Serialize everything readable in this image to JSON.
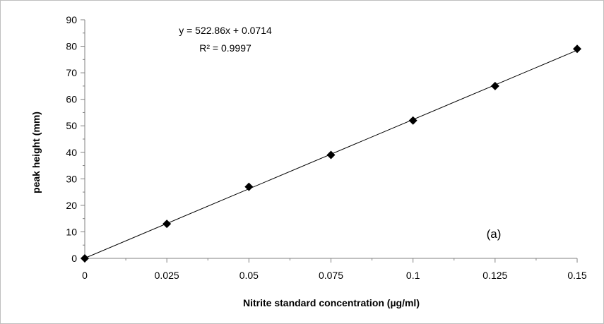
{
  "chart_data": {
    "type": "scatter",
    "title": "",
    "xlabel": "Nitrite standard concentration (µg/ml)",
    "ylabel": "peak height (mm)",
    "xlim": [
      0,
      0.15
    ],
    "ylim": [
      0,
      90
    ],
    "x_ticks": [
      "0",
      "0.025",
      "0.05",
      "0.075",
      "0.1",
      "0.125",
      "0.15"
    ],
    "y_ticks": [
      "0",
      "10",
      "20",
      "30",
      "40",
      "50",
      "60",
      "70",
      "80",
      "90"
    ],
    "grid": false,
    "legend": "none",
    "series": [
      {
        "x": [
          0,
          0.025,
          0.05,
          0.075,
          0.1,
          0.125,
          0.15
        ],
        "y": [
          0,
          13,
          27,
          39,
          52,
          65,
          79
        ],
        "marker": "diamond",
        "color": "#000000"
      }
    ],
    "trendline": {
      "slope": 522.86,
      "intercept": 0.0714,
      "color": "#000000"
    },
    "annotations": {
      "equation": "y = 522.86x + 0.0714",
      "r_squared": "R² = 0.9997",
      "panel_label": "(a)"
    }
  }
}
